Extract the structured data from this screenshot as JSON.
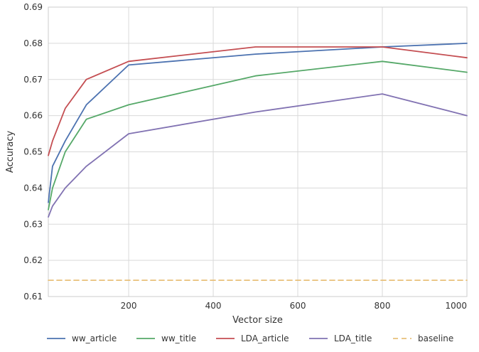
{
  "chart_data": {
    "type": "line",
    "xlabel": "Vector size",
    "ylabel": "Accuracy",
    "xlim": [
      10,
      1000
    ],
    "ylim": [
      0.61,
      0.69
    ],
    "x_ticks": [
      200,
      400,
      600,
      800,
      1000
    ],
    "y_ticks": [
      0.61,
      0.62,
      0.63,
      0.64,
      0.65,
      0.66,
      0.67,
      0.68,
      0.69
    ],
    "grid": true,
    "legend_position": "bottom",
    "series": [
      {
        "name": "ww_article",
        "color": "#4c72b0",
        "style": "solid",
        "x": [
          10,
          20,
          50,
          100,
          200,
          500,
          800,
          1000
        ],
        "y": [
          0.636,
          0.646,
          0.653,
          0.663,
          0.674,
          0.677,
          0.679,
          0.68
        ]
      },
      {
        "name": "ww_title",
        "color": "#55a868",
        "style": "solid",
        "x": [
          10,
          20,
          50,
          100,
          200,
          500,
          800,
          1000
        ],
        "y": [
          0.634,
          0.64,
          0.65,
          0.659,
          0.663,
          0.671,
          0.675,
          0.672
        ]
      },
      {
        "name": "LDA_article",
        "color": "#c44e52",
        "style": "solid",
        "x": [
          10,
          20,
          50,
          100,
          200,
          500,
          800,
          1000
        ],
        "y": [
          0.649,
          0.653,
          0.662,
          0.67,
          0.675,
          0.679,
          0.679,
          0.676
        ]
      },
      {
        "name": "LDA_title",
        "color": "#8172b2",
        "style": "solid",
        "x": [
          10,
          20,
          50,
          100,
          200,
          500,
          800,
          1000
        ],
        "y": [
          0.632,
          0.635,
          0.64,
          0.646,
          0.655,
          0.661,
          0.666,
          0.66
        ]
      },
      {
        "name": "baseline",
        "color": "#e8c07a",
        "style": "dashed",
        "x": [
          10,
          1000
        ],
        "y": [
          0.6145,
          0.6145
        ]
      }
    ]
  }
}
